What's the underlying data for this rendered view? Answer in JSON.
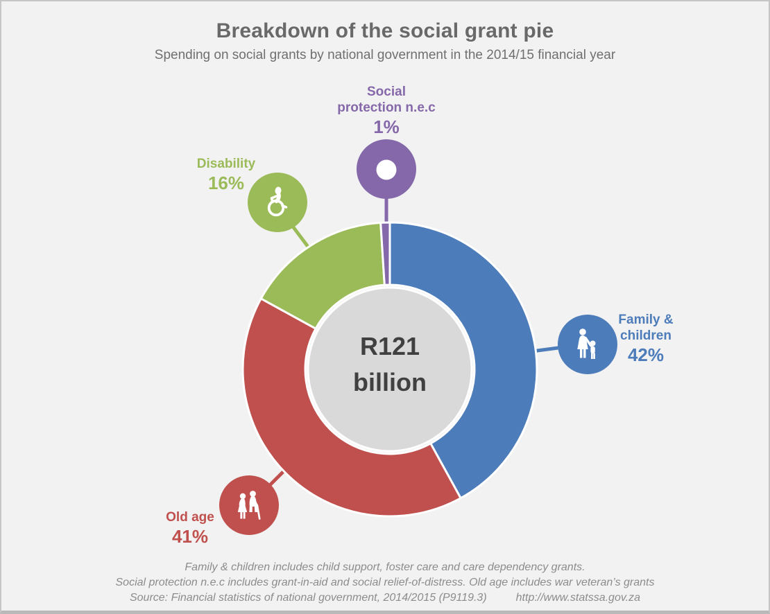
{
  "page": {
    "title": "Breakdown of the social grant pie",
    "subtitle": "Spending on social grants by national government in the 2014/15 financial year"
  },
  "chart_data": {
    "type": "pie",
    "variant": "donut",
    "title": "Breakdown of the social grant pie",
    "subtitle": "Spending on social grants by national government in the 2014/15 financial year",
    "total_label": "R121 billion",
    "center_label_line1": "R121",
    "center_label_line2": "billion",
    "unit": "%",
    "start_angle_deg": -90,
    "direction": "clockwise",
    "legend_position": "callout-circles-around-pie",
    "series": [
      {
        "name": "Family & children",
        "value": 42,
        "color": "#4d7cba",
        "icon": "mother-and-child-icon"
      },
      {
        "name": "Old age",
        "value": 41,
        "color": "#c0504d",
        "icon": "elderly-couple-icon"
      },
      {
        "name": "Disability",
        "value": 16,
        "color": "#9bbb59",
        "icon": "wheelchair-icon"
      },
      {
        "name": "Social protection n.e.c",
        "value": 1,
        "color": "#8568a9",
        "icon": "donut-hole-icon"
      }
    ]
  },
  "footer": {
    "note_line1": "Family & children includes child support, foster care and care dependency grants.",
    "note_line2": "Social protection n.e.c includes grant-in-aid and social relief-of-distress. Old age includes war veteran’s grants",
    "source": "Source: Financial statistics of national government, 2014/2015 (P9119.3)",
    "url": "http://www.statssa.gov.za"
  },
  "colors": {
    "background": "#f2f2f2",
    "center_circle_fill": "#d9d9d9",
    "center_text": "#404040",
    "title_text": "#696969",
    "footer_text": "#8c8c8c"
  }
}
